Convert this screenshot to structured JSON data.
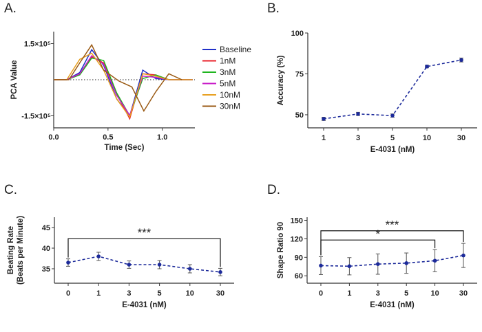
{
  "chart_data": [
    {
      "panel": "A.",
      "type": "line",
      "xlabel": "Time (Sec)",
      "ylabel": "PCA Value",
      "xlim": [
        0,
        1.3
      ],
      "ylim": [
        -200000,
        200000
      ],
      "xticks": [
        0,
        0.5,
        1.0
      ],
      "xtick_labels": [
        "0.0",
        "0.5",
        "1.0"
      ],
      "yticks": [
        150000,
        -150000
      ],
      "ytick_labels": [
        "1.5×10⁵",
        "-1.5×10⁵"
      ],
      "zero_line": "dotted",
      "series": [
        {
          "name": "Baseline",
          "color": "#2030c8",
          "x": [
            0,
            0.12,
            0.24,
            0.35,
            0.46,
            0.58,
            0.7,
            0.82,
            0.94,
            1.06,
            1.18,
            1.28
          ],
          "y": [
            0,
            0,
            30000,
            125000,
            60000,
            -80000,
            -150000,
            40000,
            5000,
            0,
            0,
            0
          ]
        },
        {
          "name": "1nM",
          "color": "#e8202a",
          "x": [
            0,
            0.12,
            0.24,
            0.35,
            0.46,
            0.58,
            0.7,
            0.82,
            0.94,
            1.06,
            1.18,
            1.28
          ],
          "y": [
            0,
            0,
            25000,
            95000,
            70000,
            -60000,
            -162000,
            25000,
            20000,
            0,
            0,
            0
          ]
        },
        {
          "name": "3nM",
          "color": "#1fb51f",
          "x": [
            0,
            0.12,
            0.24,
            0.35,
            0.46,
            0.58,
            0.7,
            0.82,
            0.94,
            1.06,
            1.18,
            1.28
          ],
          "y": [
            0,
            0,
            20000,
            90000,
            80000,
            -55000,
            -150000,
            5000,
            20000,
            0,
            0,
            0
          ]
        },
        {
          "name": "5nM",
          "color": "#c81ec8",
          "x": [
            0,
            0.12,
            0.24,
            0.35,
            0.46,
            0.58,
            0.7,
            0.82,
            0.94,
            1.06,
            1.18,
            1.28
          ],
          "y": [
            0,
            0,
            25000,
            100000,
            65000,
            -65000,
            -148000,
            15000,
            10000,
            0,
            0,
            0
          ]
        },
        {
          "name": "10nM",
          "color": "#e8a020",
          "x": [
            0,
            0.12,
            0.24,
            0.35,
            0.46,
            0.58,
            0.7,
            0.82,
            0.94,
            1.06,
            1.18,
            1.28
          ],
          "y": [
            0,
            0,
            85000,
            110000,
            40000,
            -80000,
            -155000,
            25000,
            15000,
            0,
            0,
            0
          ]
        },
        {
          "name": "30nM",
          "color": "#9a5a14",
          "x": [
            0,
            0.14,
            0.24,
            0.35,
            0.46,
            0.6,
            0.72,
            0.83,
            0.94,
            1.06,
            1.18
          ],
          "y": [
            0,
            0,
            70000,
            145000,
            40000,
            -5000,
            -30000,
            -130000,
            -50000,
            25000,
            0
          ]
        }
      ]
    },
    {
      "panel": "B.",
      "type": "line",
      "xlabel": "E-4031 (nM)",
      "ylabel": "Accuracy (%)",
      "categories": [
        "1",
        "3",
        "5",
        "10",
        "30"
      ],
      "values": [
        47.5,
        50.5,
        49.5,
        79.5,
        83.5
      ],
      "errors": [
        1,
        1,
        1,
        0.8,
        1.2
      ],
      "ylim": [
        42,
        100
      ],
      "yticks": [
        50,
        75,
        100
      ],
      "color": "#1c2a9a",
      "line_style": "dashed"
    },
    {
      "panel": "C.",
      "type": "line",
      "xlabel": "E-4031 (nM)",
      "ylabel": "Beating Rate",
      "ylabel2": "(Beats per Minute)",
      "categories": [
        "0",
        "1",
        "3",
        "5",
        "10",
        "30"
      ],
      "values": [
        36.5,
        38,
        36,
        36,
        35,
        34.2
      ],
      "errors": [
        0.9,
        1.0,
        0.9,
        1.0,
        1.0,
        0.9
      ],
      "ylim": [
        31.5,
        47.5
      ],
      "yticks": [
        35,
        40,
        45
      ],
      "color": "#1c2a9a",
      "line_style": "dashed",
      "brackets": [
        {
          "from": 0,
          "to": 5,
          "level": 42.3,
          "label": "***"
        }
      ]
    },
    {
      "panel": "D.",
      "type": "line",
      "xlabel": "E-4031 (nM)",
      "ylabel": "Shape Ratio 90",
      "categories": [
        "0",
        "1",
        "3",
        "5",
        "10",
        "30"
      ],
      "values": [
        76.5,
        75.5,
        79,
        80.5,
        84.5,
        93
      ],
      "errors": [
        14.5,
        14,
        16.5,
        16.5,
        18,
        19.5
      ],
      "ylim": [
        48,
        155
      ],
      "yticks": [
        60,
        90,
        120,
        150
      ],
      "color": "#1c2a9a",
      "line_style": "dashed",
      "brackets": [
        {
          "from": 0,
          "to": 5,
          "level": 133,
          "label": "***"
        },
        {
          "from": 0,
          "to": 4,
          "level": 118,
          "label": "*"
        }
      ]
    }
  ]
}
